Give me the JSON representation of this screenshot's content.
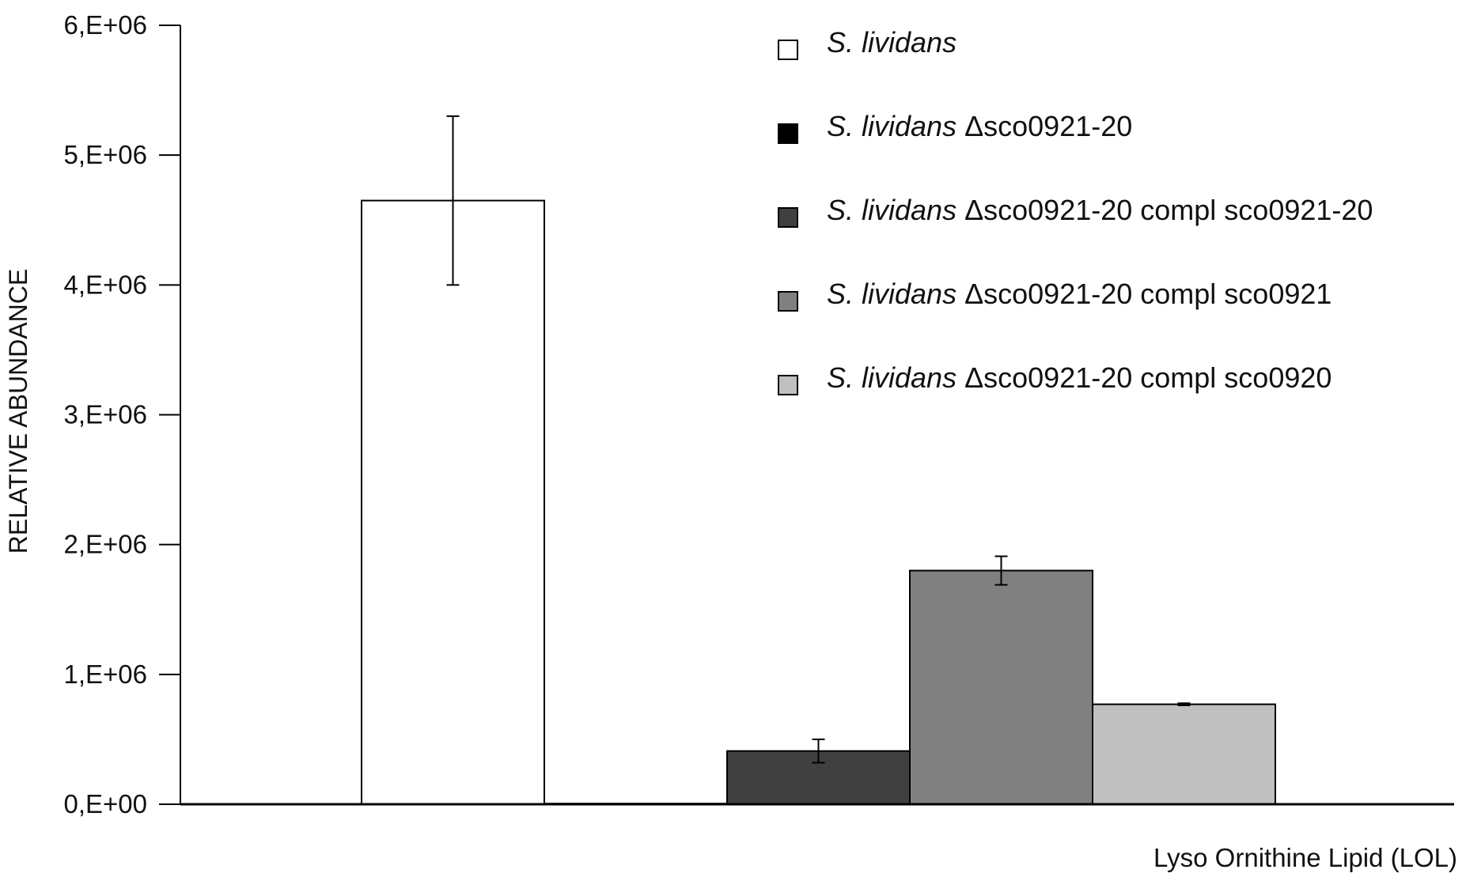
{
  "chart_data": {
    "type": "bar",
    "categories": [
      "Lyso Ornithine Lipid (LOL)"
    ],
    "series": [
      {
        "name": "S. lividans",
        "name_italic": "S. lividans",
        "name_rest": "",
        "color": "#ffffff",
        "value": 4650000,
        "error": 650000
      },
      {
        "name": "S. lividans Δsco0921-20",
        "name_italic": "S. lividans",
        "name_rest": " Δsco0921-20",
        "color": "#000000",
        "value": 5000,
        "error": 0
      },
      {
        "name": "S. lividans Δsco0921-20 compl sco0921-20",
        "name_italic": "S. lividans",
        "name_rest": " Δsco0921-20 compl sco0921-20",
        "color": "#404040",
        "value": 410000,
        "error": 90000
      },
      {
        "name": "S. lividans Δsco0921-20 compl sco0921",
        "name_italic": "S. lividans",
        "name_rest": " Δsco0921-20 compl sco0921",
        "color": "#808080",
        "value": 1800000,
        "error": 110000
      },
      {
        "name": "S. lividans Δsco0921-20 compl sco0920",
        "name_italic": "S. lividans",
        "name_rest": " Δsco0921-20 compl sco0920",
        "color": "#c0c0c0",
        "value": 770000,
        "error": 8000
      }
    ],
    "xlabel": "Lyso Ornithine Lipid (LOL)",
    "ylabel": "RELATIVE ABUNDANCE",
    "ylim": [
      0,
      6000000
    ],
    "yticks": [
      0,
      1000000,
      2000000,
      3000000,
      4000000,
      5000000,
      6000000
    ],
    "ytick_labels": [
      "0,E+00",
      "1,E+06",
      "2,E+06",
      "3,E+06",
      "4,E+06",
      "5,E+06",
      "6,E+06"
    ],
    "grid": false,
    "legend_position": "top-right"
  }
}
